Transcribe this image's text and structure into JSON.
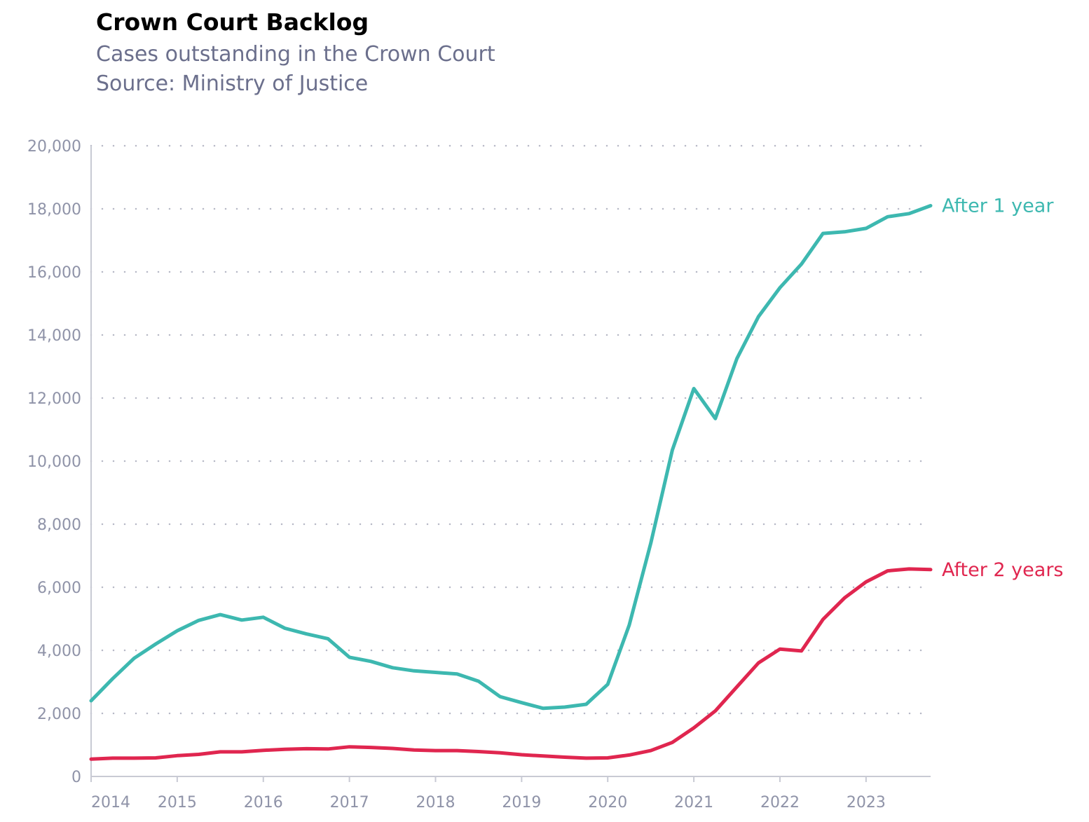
{
  "chart_data": {
    "type": "line",
    "title": "Crown Court Backlog",
    "subtitle": "Cases outstanding in the Crown Court",
    "source": "Source: Ministry of Justice",
    "xlabel": "",
    "ylabel": "",
    "ylim": [
      0,
      20000
    ],
    "xlim": [
      2014.0,
      2023.75
    ],
    "yticks": [
      0,
      2000,
      4000,
      6000,
      8000,
      10000,
      12000,
      14000,
      16000,
      18000,
      20000
    ],
    "ytick_labels": [
      "0",
      "2,000",
      "4,000",
      "6,000",
      "8,000",
      "10,000",
      "12,000",
      "14,000",
      "16,000",
      "18,000",
      "20,000"
    ],
    "xticks": [
      2014,
      2015,
      2016,
      2017,
      2018,
      2019,
      2020,
      2021,
      2022,
      2023
    ],
    "xtick_labels": [
      "2014",
      "2015",
      "2016",
      "2017",
      "2018",
      "2019",
      "2020",
      "2021",
      "2022",
      "2023"
    ],
    "grid": "horizontal dotted",
    "legend": "direct labels at line ends (right)",
    "x": [
      2014.0,
      2014.25,
      2014.5,
      2014.75,
      2015.0,
      2015.25,
      2015.5,
      2015.75,
      2016.0,
      2016.25,
      2016.5,
      2016.75,
      2017.0,
      2017.25,
      2017.5,
      2017.75,
      2018.0,
      2018.25,
      2018.5,
      2018.75,
      2019.0,
      2019.25,
      2019.5,
      2019.75,
      2020.0,
      2020.25,
      2020.5,
      2020.75,
      2021.0,
      2021.25,
      2021.5,
      2021.75,
      2022.0,
      2022.25,
      2022.5,
      2022.75,
      2023.0,
      2023.25,
      2023.5,
      2023.75
    ],
    "series": [
      {
        "name": "After 1 year",
        "color": "#3db8b0",
        "values": [
          2400,
          3100,
          3750,
          4200,
          4620,
          4950,
          5130,
          4960,
          5050,
          4700,
          4520,
          4370,
          3780,
          3650,
          3450,
          3350,
          3300,
          3250,
          3020,
          2530,
          2340,
          2160,
          2200,
          2290,
          2920,
          4800,
          7400,
          10350,
          12300,
          11350,
          13250,
          14580,
          15500,
          16250,
          17220,
          17270,
          17380,
          17750,
          17850,
          18100
        ]
      },
      {
        "name": "After 2 years",
        "color": "#e0264f",
        "values": [
          550,
          580,
          580,
          590,
          660,
          700,
          780,
          780,
          830,
          860,
          880,
          870,
          940,
          920,
          890,
          840,
          820,
          820,
          790,
          750,
          690,
          650,
          610,
          580,
          590,
          680,
          820,
          1080,
          1540,
          2080,
          2840,
          3600,
          4040,
          3980,
          4980,
          5660,
          6170,
          6520,
          6580,
          6560
        ]
      }
    ]
  }
}
